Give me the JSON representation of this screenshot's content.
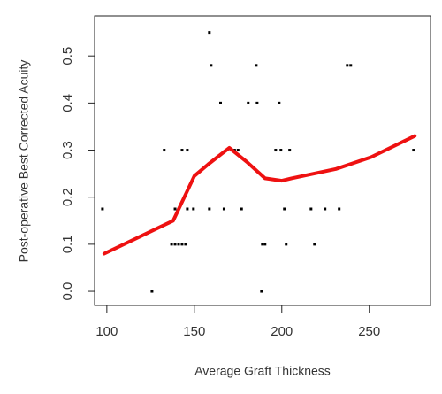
{
  "chart_data": {
    "type": "scatter",
    "x_label": "Average Graft Thickness",
    "y_label": "Post-operative Best Corrected Acuity",
    "xlim": [
      93,
      285
    ],
    "ylim": [
      -0.03,
      0.585
    ],
    "xticks": [
      100,
      150,
      200,
      250
    ],
    "yticks": [
      {
        "value": 0,
        "label": "0.0"
      },
      0.1,
      0.2,
      0.3,
      0.4,
      {
        "value": 0.5,
        "label": "0.5"
      }
    ],
    "points": {
      "color": "#000000",
      "x": [
        97.5,
        125.8,
        132.8,
        137,
        139,
        141,
        143,
        145,
        139,
        143,
        146,
        146,
        149.5,
        158.6,
        159.6,
        158.6,
        165,
        167,
        171,
        173,
        175,
        177,
        180.8,
        185.9,
        185.4,
        188.9,
        190.4,
        188.4,
        196.5,
        199.5,
        204.5,
        198.5,
        201.5,
        202.5,
        216.7,
        224.7,
        232.8,
        218.7,
        237.4,
        239.4,
        275.3
      ],
      "values": [
        0.175,
        0,
        0.3,
        0.1,
        0.1,
        0.1,
        0.1,
        0.1,
        0.175,
        0.3,
        0.3,
        0.175,
        0.175,
        0.175,
        0.48,
        0.55,
        0.4,
        0.175,
        0.3,
        0.3,
        0.3,
        0.175,
        0.4,
        0.4,
        0.48,
        0.1,
        0.1,
        0,
        0.3,
        0.3,
        0.3,
        0.4,
        0.175,
        0.1,
        0.175,
        0.175,
        0.175,
        0.1,
        0.48,
        0.48,
        0.3
      ]
    },
    "fit": {
      "color": "#ee1111",
      "x": [
        98.5,
        137.9,
        150,
        158,
        170,
        180,
        190.4,
        200,
        205.5,
        231,
        251,
        276
      ],
      "values": [
        0.08,
        0.15,
        0.245,
        0.27,
        0.305,
        0.275,
        0.24,
        0.235,
        0.24,
        0.26,
        0.285,
        0.33
      ]
    }
  }
}
